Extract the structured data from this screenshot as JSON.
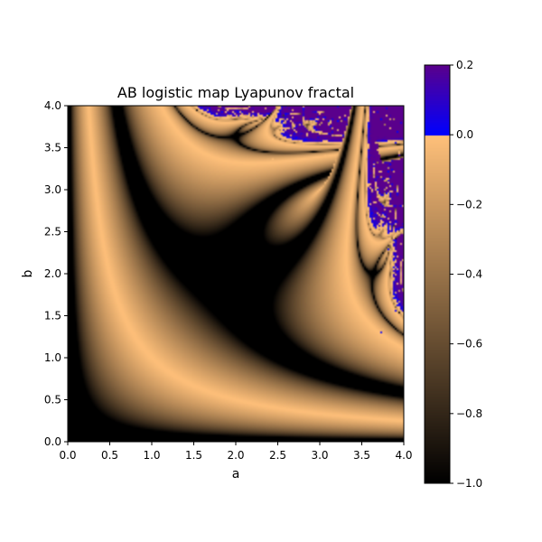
{
  "chart_data": {
    "type": "heatmap",
    "title": "AB logistic map Lyapunov fractal",
    "xlabel": "a",
    "ylabel": "b",
    "xlim": [
      0.0,
      4.0
    ],
    "ylim": [
      0.0,
      4.0
    ],
    "x_ticks": [
      "0.0",
      "0.5",
      "1.0",
      "1.5",
      "2.0",
      "2.5",
      "3.0",
      "3.5",
      "4.0"
    ],
    "y_ticks": [
      "0.0",
      "0.5",
      "1.0",
      "1.5",
      "2.0",
      "2.5",
      "3.0",
      "3.5",
      "4.0"
    ],
    "sequence": "AB",
    "colorbar": {
      "range": [
        -1.0,
        0.2
      ],
      "ticks": [
        "0.2",
        "0.0",
        "−0.2",
        "−0.4",
        "−0.6",
        "−0.8",
        "−1.0"
      ],
      "tick_values": [
        0.2,
        0.0,
        -0.2,
        -0.4,
        -0.6,
        -0.8,
        -1.0
      ],
      "negative_colormap": "copper",
      "positive_colormap": "blue-purple"
    },
    "colors": {
      "chaotic": "#0000ff",
      "chaotic_high": "#5a008c",
      "stable_light": "#ffc07a",
      "stable_dark": "#000000"
    }
  }
}
